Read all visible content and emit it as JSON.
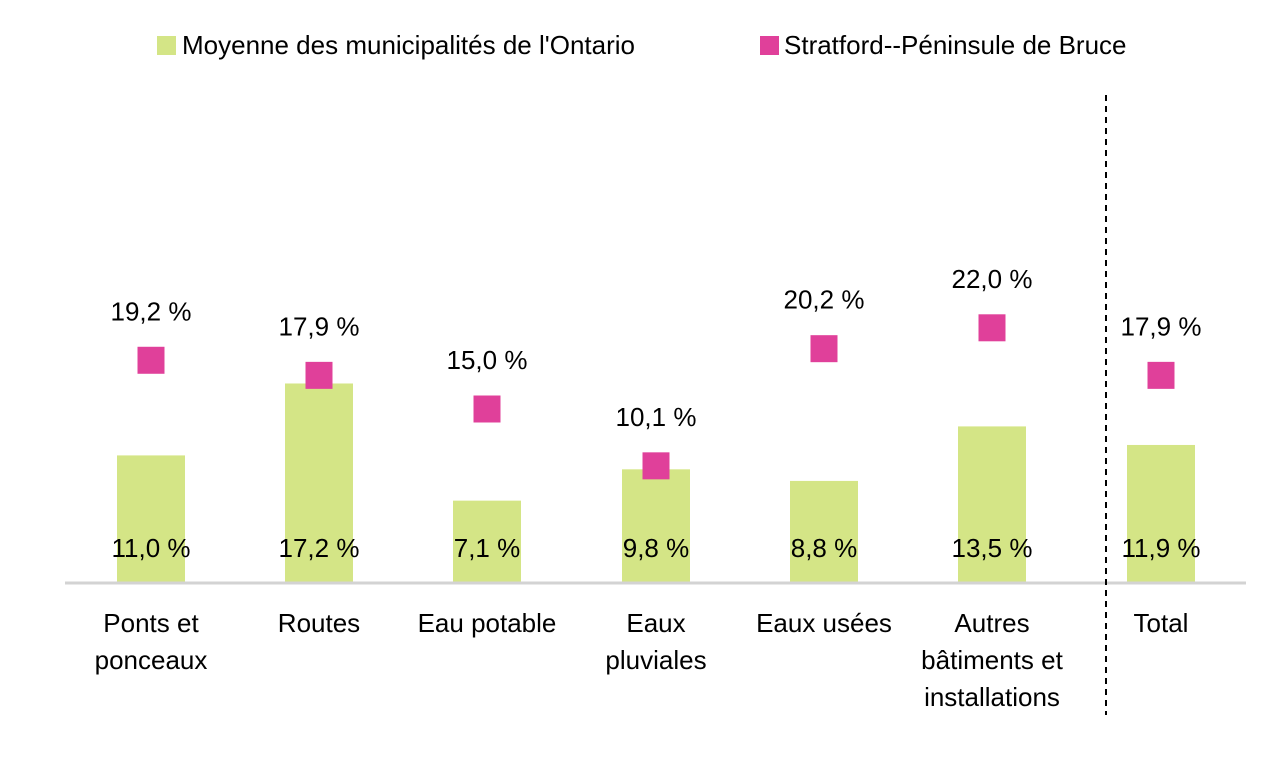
{
  "colors": {
    "bar": "#d4e586",
    "marker": "#e0409a",
    "axis": "#d3d3d3",
    "separator": "#000000"
  },
  "chart_data": {
    "type": "bar",
    "categories": [
      [
        "Ponts et",
        "ponceaux"
      ],
      [
        "Routes"
      ],
      [
        "Eau potable"
      ],
      [
        "Eaux",
        "pluviales"
      ],
      [
        "Eaux usées"
      ],
      [
        "Autres",
        "bâtiments et",
        "installations"
      ],
      [
        "Total"
      ]
    ],
    "series": [
      {
        "name": "Moyenne des municipalités de l'Ontario",
        "kind": "bar",
        "values": [
          11.0,
          17.2,
          7.1,
          9.8,
          8.8,
          13.5,
          11.9
        ],
        "labels": [
          "11,0 %",
          "17,2 %",
          "7,1 %",
          "9,8 %",
          "8,8 %",
          "13,5 %",
          "11,9 %"
        ]
      },
      {
        "name": "Stratford--Péninsule de Bruce",
        "kind": "marker",
        "values": [
          19.2,
          17.9,
          15.0,
          10.1,
          20.2,
          22.0,
          17.9
        ],
        "labels": [
          "19,2 %",
          "17,9 %",
          "15,0 %",
          "10,1 %",
          "20,2 %",
          "22,0 %",
          "17,9 %"
        ]
      }
    ],
    "ylim": [
      0,
      27
    ],
    "grid": false,
    "legend": "top-center",
    "separator_before": "Total"
  }
}
